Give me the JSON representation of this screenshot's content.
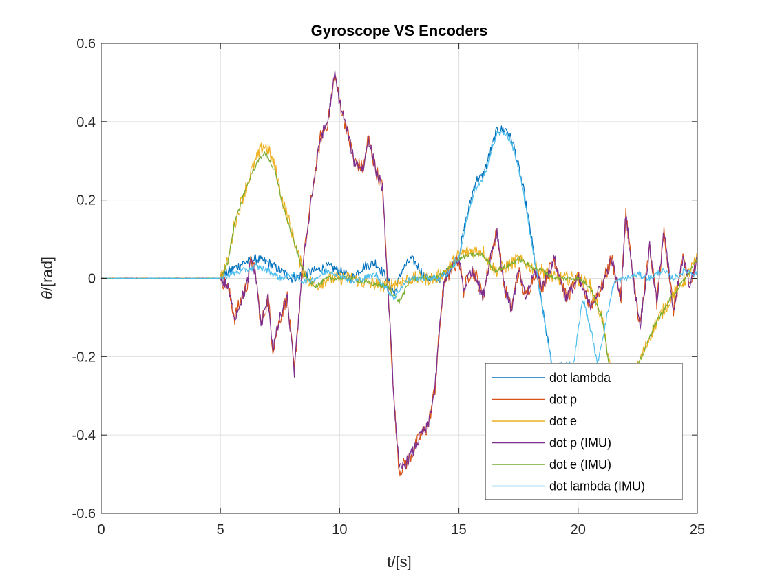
{
  "chart_data": {
    "type": "line",
    "title": "Gyroscope VS Encoders",
    "xlabel": "t/[s]",
    "ylabel_symbol": "θ",
    "ylabel_unit": "/[rad]",
    "xlim": [
      0,
      25
    ],
    "ylim": [
      -0.6,
      0.6
    ],
    "xticks": [
      0,
      5,
      10,
      15,
      20,
      25
    ],
    "xtick_labels": [
      "0",
      "5",
      "10",
      "15",
      "20",
      "25"
    ],
    "yticks": [
      -0.6,
      -0.4,
      -0.2,
      0,
      0.2,
      0.4,
      0.6
    ],
    "ytick_labels": [
      "-0.6",
      "-0.4",
      "-0.2",
      "0",
      "0.2",
      "0.4",
      "0.6"
    ],
    "grid": true,
    "legend_position": "bottom-right",
    "series": [
      {
        "name": "dot lambda",
        "color": "#0072BD",
        "noise": 0.012,
        "points": [
          [
            0,
            0.0
          ],
          [
            5.0,
            0.0
          ],
          [
            5.4,
            0.02
          ],
          [
            6.0,
            0.04
          ],
          [
            6.5,
            0.05
          ],
          [
            7.0,
            0.04
          ],
          [
            7.5,
            0.02
          ],
          [
            8.0,
            0.0
          ],
          [
            8.5,
            0.01
          ],
          [
            9.0,
            0.02
          ],
          [
            9.5,
            0.03
          ],
          [
            10.0,
            0.02
          ],
          [
            10.5,
            0.0
          ],
          [
            11.0,
            0.03
          ],
          [
            11.5,
            0.04
          ],
          [
            12.0,
            0.0
          ],
          [
            12.3,
            -0.04
          ],
          [
            12.6,
            0.02
          ],
          [
            13.0,
            0.05
          ],
          [
            13.3,
            0.03
          ],
          [
            13.6,
            0.0
          ],
          [
            14.2,
            0.0
          ],
          [
            14.6,
            0.02
          ],
          [
            15.0,
            0.06
          ],
          [
            15.3,
            0.15
          ],
          [
            15.7,
            0.25
          ],
          [
            16.0,
            0.26
          ],
          [
            16.3,
            0.32
          ],
          [
            16.6,
            0.38
          ],
          [
            17.0,
            0.38
          ],
          [
            17.3,
            0.34
          ],
          [
            17.7,
            0.23
          ],
          [
            18.0,
            0.12
          ],
          [
            18.3,
            0.0
          ],
          [
            18.7,
            -0.15
          ],
          [
            18.9,
            -0.22
          ]
        ]
      },
      {
        "name": "dot p",
        "color": "#D95319",
        "noise": 0.02,
        "points": [
          [
            0,
            0.0
          ],
          [
            5.0,
            0.0
          ],
          [
            5.3,
            -0.02
          ],
          [
            5.6,
            -0.1
          ],
          [
            5.9,
            -0.05
          ],
          [
            6.1,
            -0.02
          ],
          [
            6.3,
            0.05
          ],
          [
            6.5,
            0.0
          ],
          [
            6.7,
            -0.12
          ],
          [
            7.0,
            -0.05
          ],
          [
            7.2,
            -0.18
          ],
          [
            7.5,
            -0.1
          ],
          [
            7.8,
            -0.05
          ],
          [
            8.1,
            -0.24
          ],
          [
            8.4,
            0.0
          ],
          [
            8.8,
            0.2
          ],
          [
            9.2,
            0.36
          ],
          [
            9.5,
            0.4
          ],
          [
            9.8,
            0.52
          ],
          [
            10.0,
            0.45
          ],
          [
            10.3,
            0.38
          ],
          [
            10.6,
            0.3
          ],
          [
            11.0,
            0.28
          ],
          [
            11.2,
            0.36
          ],
          [
            11.5,
            0.28
          ],
          [
            11.8,
            0.23
          ],
          [
            12.0,
            0.0
          ],
          [
            12.3,
            -0.33
          ],
          [
            12.5,
            -0.49
          ],
          [
            12.8,
            -0.47
          ],
          [
            13.1,
            -0.44
          ],
          [
            13.4,
            -0.4
          ],
          [
            13.7,
            -0.38
          ],
          [
            14.0,
            -0.28
          ],
          [
            14.2,
            -0.12
          ],
          [
            14.4,
            0.0
          ],
          [
            14.7,
            0.02
          ],
          [
            15.0,
            0.05
          ],
          [
            15.2,
            -0.03
          ],
          [
            15.5,
            0.02
          ],
          [
            15.7,
            0.01
          ],
          [
            16.0,
            -0.05
          ],
          [
            16.3,
            0.05
          ],
          [
            16.6,
            0.12
          ],
          [
            16.9,
            -0.02
          ],
          [
            17.2,
            -0.08
          ],
          [
            17.5,
            0.02
          ],
          [
            17.8,
            -0.05
          ],
          [
            18.2,
            0.02
          ],
          [
            18.5,
            -0.02
          ],
          [
            19.0,
            0.05
          ],
          [
            19.5,
            -0.05
          ],
          [
            20.0,
            0.0
          ],
          [
            20.5,
            -0.07
          ],
          [
            21.0,
            -0.02
          ],
          [
            21.4,
            0.05
          ],
          [
            21.8,
            -0.05
          ],
          [
            22.0,
            0.17
          ],
          [
            22.3,
            0.0
          ],
          [
            22.6,
            -0.12
          ],
          [
            23.0,
            0.08
          ],
          [
            23.3,
            -0.06
          ],
          [
            23.6,
            0.12
          ],
          [
            24.0,
            -0.08
          ],
          [
            24.4,
            0.05
          ],
          [
            24.7,
            -0.02
          ],
          [
            25.0,
            0.05
          ]
        ]
      },
      {
        "name": "dot e",
        "color": "#EDB120",
        "noise": 0.018,
        "points": [
          [
            0,
            0.0
          ],
          [
            5.0,
            0.0
          ],
          [
            5.3,
            0.04
          ],
          [
            5.6,
            0.14
          ],
          [
            6.0,
            0.22
          ],
          [
            6.4,
            0.29
          ],
          [
            6.8,
            0.34
          ],
          [
            7.0,
            0.33
          ],
          [
            7.3,
            0.28
          ],
          [
            7.6,
            0.2
          ],
          [
            8.0,
            0.12
          ],
          [
            8.3,
            0.05
          ],
          [
            8.6,
            0.0
          ],
          [
            9.0,
            -0.02
          ],
          [
            9.5,
            0.0
          ],
          [
            10.0,
            0.0
          ],
          [
            10.5,
            0.0
          ],
          [
            11.0,
            -0.01
          ],
          [
            12.0,
            -0.02
          ],
          [
            13.0,
            0.0
          ],
          [
            14.0,
            0.0
          ],
          [
            14.5,
            0.02
          ],
          [
            15.0,
            0.06
          ],
          [
            15.5,
            0.07
          ],
          [
            16.0,
            0.07
          ],
          [
            16.5,
            0.02
          ],
          [
            17.0,
            0.03
          ],
          [
            17.5,
            0.05
          ],
          [
            18.0,
            0.03
          ],
          [
            18.5,
            0.02
          ],
          [
            19.0,
            0.0
          ],
          [
            20.0,
            0.0
          ],
          [
            20.5,
            -0.02
          ],
          [
            21.0,
            -0.1
          ],
          [
            21.3,
            -0.22
          ],
          [
            21.6,
            -0.3
          ],
          [
            22.0,
            -0.3
          ],
          [
            22.4,
            -0.24
          ],
          [
            22.8,
            -0.18
          ],
          [
            23.2,
            -0.12
          ],
          [
            23.6,
            -0.08
          ],
          [
            24.0,
            -0.04
          ],
          [
            24.5,
            0.0
          ],
          [
            25.0,
            0.05
          ]
        ]
      },
      {
        "name": "dot p (IMU)",
        "color": "#7E2F8E",
        "noise": 0.015,
        "points": [
          [
            0,
            0.0
          ],
          [
            5.0,
            0.0
          ],
          [
            5.3,
            -0.02
          ],
          [
            5.6,
            -0.1
          ],
          [
            5.9,
            -0.05
          ],
          [
            6.1,
            -0.02
          ],
          [
            6.3,
            0.05
          ],
          [
            6.5,
            0.0
          ],
          [
            6.7,
            -0.12
          ],
          [
            7.0,
            -0.05
          ],
          [
            7.2,
            -0.18
          ],
          [
            7.5,
            -0.1
          ],
          [
            7.8,
            -0.05
          ],
          [
            8.1,
            -0.24
          ],
          [
            8.4,
            0.0
          ],
          [
            8.8,
            0.2
          ],
          [
            9.2,
            0.36
          ],
          [
            9.5,
            0.4
          ],
          [
            9.8,
            0.52
          ],
          [
            10.0,
            0.45
          ],
          [
            10.3,
            0.38
          ],
          [
            10.6,
            0.3
          ],
          [
            11.0,
            0.28
          ],
          [
            11.2,
            0.36
          ],
          [
            11.5,
            0.28
          ],
          [
            11.8,
            0.23
          ],
          [
            12.0,
            0.0
          ],
          [
            12.3,
            -0.33
          ],
          [
            12.5,
            -0.49
          ],
          [
            12.8,
            -0.47
          ],
          [
            13.1,
            -0.44
          ],
          [
            13.4,
            -0.4
          ],
          [
            13.7,
            -0.38
          ],
          [
            14.0,
            -0.28
          ],
          [
            14.2,
            -0.12
          ],
          [
            14.4,
            0.0
          ],
          [
            14.7,
            0.02
          ],
          [
            15.0,
            0.05
          ],
          [
            15.2,
            -0.03
          ],
          [
            15.5,
            0.02
          ],
          [
            15.7,
            0.01
          ],
          [
            16.0,
            -0.05
          ],
          [
            16.3,
            0.05
          ],
          [
            16.6,
            0.12
          ],
          [
            16.9,
            -0.02
          ],
          [
            17.2,
            -0.08
          ],
          [
            17.5,
            0.02
          ],
          [
            17.8,
            -0.05
          ],
          [
            18.2,
            0.02
          ],
          [
            18.5,
            -0.02
          ],
          [
            19.0,
            0.05
          ],
          [
            19.5,
            -0.05
          ],
          [
            20.0,
            0.0
          ],
          [
            20.5,
            -0.07
          ],
          [
            21.0,
            -0.02
          ],
          [
            21.4,
            0.05
          ],
          [
            21.8,
            -0.05
          ],
          [
            22.0,
            0.17
          ],
          [
            22.3,
            0.0
          ],
          [
            22.6,
            -0.12
          ],
          [
            23.0,
            0.08
          ],
          [
            23.3,
            -0.06
          ],
          [
            23.6,
            0.12
          ],
          [
            24.0,
            -0.08
          ],
          [
            24.4,
            0.05
          ],
          [
            24.7,
            -0.02
          ],
          [
            25.0,
            0.05
          ]
        ]
      },
      {
        "name": "dot e (IMU)",
        "color": "#77AC30",
        "noise": 0.006,
        "points": [
          [
            0,
            0.0
          ],
          [
            5.0,
            0.0
          ],
          [
            5.3,
            0.04
          ],
          [
            5.6,
            0.14
          ],
          [
            6.0,
            0.22
          ],
          [
            6.4,
            0.28
          ],
          [
            6.8,
            0.32
          ],
          [
            7.0,
            0.31
          ],
          [
            7.3,
            0.27
          ],
          [
            7.6,
            0.19
          ],
          [
            8.0,
            0.11
          ],
          [
            8.3,
            0.05
          ],
          [
            8.6,
            0.0
          ],
          [
            9.0,
            -0.02
          ],
          [
            9.5,
            0.0
          ],
          [
            10.0,
            0.0
          ],
          [
            10.5,
            0.0
          ],
          [
            11.0,
            -0.01
          ],
          [
            12.0,
            -0.02
          ],
          [
            12.5,
            -0.06
          ],
          [
            13.0,
            0.0
          ],
          [
            14.0,
            0.0
          ],
          [
            14.5,
            0.02
          ],
          [
            15.0,
            0.05
          ],
          [
            15.5,
            0.06
          ],
          [
            16.0,
            0.06
          ],
          [
            16.5,
            0.02
          ],
          [
            17.0,
            0.03
          ],
          [
            17.5,
            0.05
          ],
          [
            18.0,
            0.03
          ],
          [
            18.5,
            0.02
          ],
          [
            19.0,
            0.0
          ],
          [
            20.0,
            0.0
          ],
          [
            20.5,
            -0.02
          ],
          [
            21.0,
            -0.1
          ],
          [
            21.3,
            -0.22
          ],
          [
            21.6,
            -0.3
          ],
          [
            22.0,
            -0.3
          ],
          [
            22.4,
            -0.24
          ],
          [
            22.8,
            -0.18
          ],
          [
            23.2,
            -0.12
          ],
          [
            23.6,
            -0.08
          ],
          [
            24.0,
            -0.04
          ],
          [
            24.5,
            0.0
          ],
          [
            25.0,
            0.05
          ]
        ]
      },
      {
        "name": "dot lambda (IMU)",
        "color": "#4DBEEE",
        "noise": 0.008,
        "points": [
          [
            0,
            0.0
          ],
          [
            5.0,
            0.0
          ],
          [
            5.4,
            0.01
          ],
          [
            6.0,
            0.02
          ],
          [
            6.5,
            0.03
          ],
          [
            7.0,
            0.02
          ],
          [
            7.5,
            0.0
          ],
          [
            8.0,
            0.01
          ],
          [
            8.5,
            -0.01
          ],
          [
            9.0,
            0.0
          ],
          [
            9.5,
            0.02
          ],
          [
            10.0,
            0.01
          ],
          [
            10.5,
            -0.01
          ],
          [
            11.0,
            0.0
          ],
          [
            11.5,
            0.01
          ],
          [
            12.0,
            -0.03
          ],
          [
            12.3,
            -0.05
          ],
          [
            12.6,
            -0.02
          ],
          [
            13.0,
            0.0
          ],
          [
            13.5,
            0.0
          ],
          [
            14.2,
            0.0
          ],
          [
            14.6,
            0.02
          ],
          [
            15.0,
            0.05
          ],
          [
            15.3,
            0.14
          ],
          [
            15.7,
            0.23
          ],
          [
            16.0,
            0.25
          ],
          [
            16.3,
            0.31
          ],
          [
            16.6,
            0.37
          ],
          [
            17.0,
            0.37
          ],
          [
            17.3,
            0.33
          ],
          [
            17.7,
            0.22
          ],
          [
            18.0,
            0.11
          ],
          [
            18.3,
            0.0
          ],
          [
            18.7,
            -0.15
          ],
          [
            18.9,
            -0.22
          ],
          [
            19.8,
            -0.22
          ],
          [
            20.2,
            -0.05
          ],
          [
            20.6,
            -0.15
          ],
          [
            20.8,
            -0.22
          ],
          [
            21.5,
            -0.01
          ],
          [
            22.0,
            0.0
          ],
          [
            22.5,
            0.01
          ],
          [
            23.0,
            0.0
          ],
          [
            23.5,
            0.02
          ],
          [
            24.0,
            0.0
          ],
          [
            24.5,
            0.02
          ],
          [
            25.0,
            0.01
          ]
        ]
      }
    ]
  }
}
